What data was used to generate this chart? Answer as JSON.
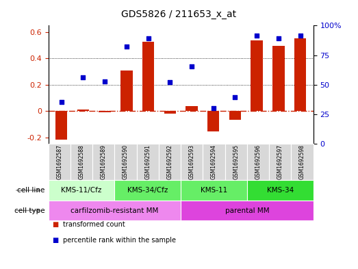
{
  "title": "GDS5826 / 211653_x_at",
  "samples": [
    "GSM1692587",
    "GSM1692588",
    "GSM1692589",
    "GSM1692590",
    "GSM1692591",
    "GSM1692592",
    "GSM1692593",
    "GSM1692594",
    "GSM1692595",
    "GSM1692596",
    "GSM1692597",
    "GSM1692598"
  ],
  "bar_values": [
    -0.215,
    0.01,
    -0.01,
    0.31,
    0.525,
    -0.02,
    0.035,
    -0.155,
    -0.065,
    0.535,
    0.495,
    0.555
  ],
  "dot_values": [
    0.07,
    0.255,
    0.225,
    0.49,
    0.555,
    0.22,
    0.34,
    0.02,
    0.105,
    0.575,
    0.555,
    0.575
  ],
  "bar_color": "#cc2200",
  "dot_color": "#0000cc",
  "ylim_left": [
    -0.25,
    0.65
  ],
  "ylim_right": [
    0,
    100
  ],
  "yticks_left": [
    -0.2,
    0.0,
    0.2,
    0.4,
    0.6
  ],
  "yticks_right": [
    0,
    25,
    50,
    75,
    100
  ],
  "ytick_labels_left": [
    "-0.2",
    "0",
    "0.2",
    "0.4",
    "0.6"
  ],
  "ytick_labels_right": [
    "0",
    "25",
    "50",
    "75",
    "100%"
  ],
  "hline_y": 0.0,
  "dotted_lines": [
    0.2,
    0.4
  ],
  "cell_line_groups": [
    {
      "label": "KMS-11/Cfz",
      "start": 0,
      "end": 3,
      "color": "#ccffcc"
    },
    {
      "label": "KMS-34/Cfz",
      "start": 3,
      "end": 6,
      "color": "#66ee66"
    },
    {
      "label": "KMS-11",
      "start": 6,
      "end": 9,
      "color": "#66ee66"
    },
    {
      "label": "KMS-34",
      "start": 9,
      "end": 12,
      "color": "#33dd33"
    }
  ],
  "cell_type_groups": [
    {
      "label": "carfilzomib-resistant MM",
      "start": 0,
      "end": 6,
      "color": "#ee88ee"
    },
    {
      "label": "parental MM",
      "start": 6,
      "end": 12,
      "color": "#dd44dd"
    }
  ],
  "legend_items": [
    {
      "label": "transformed count",
      "color": "#cc2200"
    },
    {
      "label": "percentile rank within the sample",
      "color": "#0000cc"
    }
  ],
  "sample_box_color": "#d8d8d8",
  "sample_box_edge_color": "#aaaaaa"
}
